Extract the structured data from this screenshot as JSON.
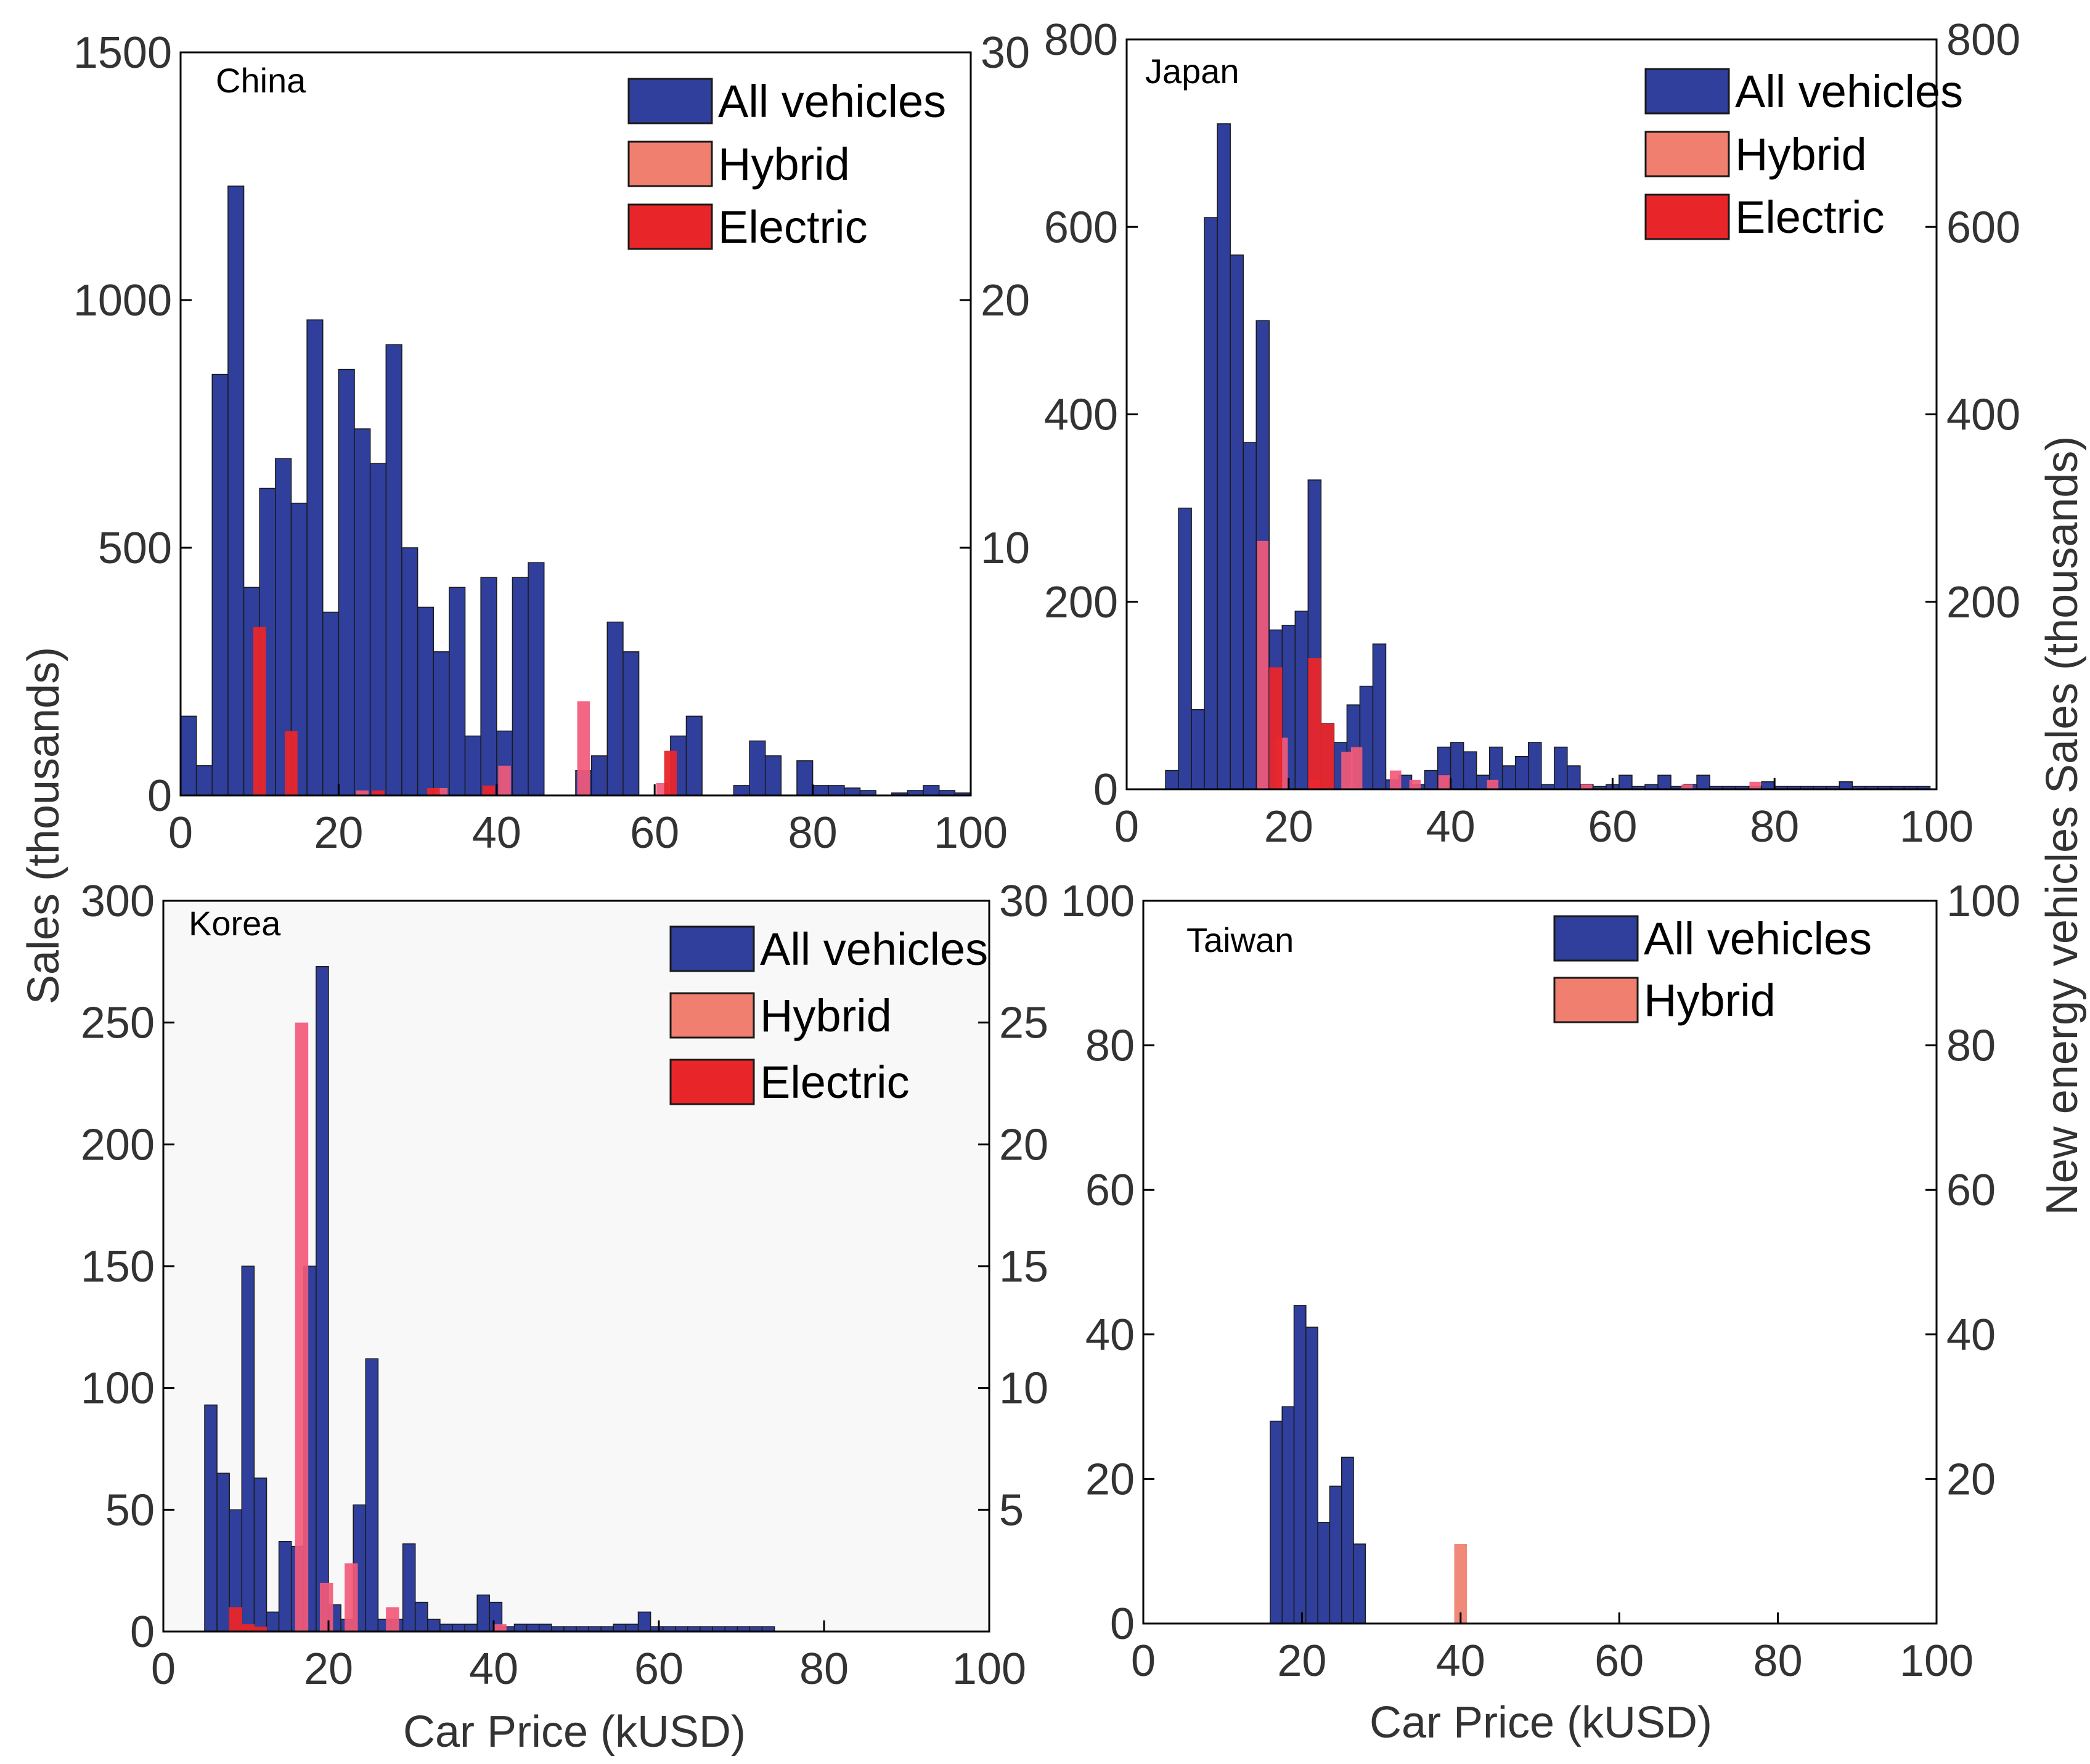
{
  "figure": {
    "left_axis_label": "Sales (thousands)",
    "right_axis_label": "New energy vehicles Sales (thousands)",
    "bottom_axis_label": "Car Price (kUSD)"
  },
  "colors": {
    "all_vehicles": "#2f3f9b",
    "hybrid": "#f07f6f",
    "electric": "#e8262a",
    "hybrid_overlay": "#f25a7a",
    "axes": "#000000",
    "text": "#333333",
    "korea_background": "#f8f8f8"
  },
  "legend_labels": {
    "all": "All vehicles",
    "hybrid": "Hybrid",
    "electric": "Electric"
  },
  "chart_data": [
    {
      "type": "bar",
      "title": "China",
      "xlabel": "",
      "ylabel": "Sales (thousands)",
      "y2label": "",
      "xlim": [
        0,
        100
      ],
      "ylim": [
        0,
        1500
      ],
      "y2lim": [
        0,
        30
      ],
      "xticks": [
        "0",
        "20",
        "40",
        "60",
        "80",
        "100"
      ],
      "yticks": [
        "0",
        "500",
        "1000",
        "1500"
      ],
      "y2ticks": [
        "10",
        "20",
        "30"
      ],
      "legend": [
        "All vehicles",
        "Hybrid",
        "Electric"
      ],
      "legend_position": "top-right",
      "bin_width": 2,
      "all_bins": [
        1,
        3,
        5,
        7,
        9,
        11,
        13,
        15,
        17,
        19,
        21,
        23,
        25,
        27,
        29,
        31,
        33,
        35,
        37,
        39,
        41,
        43,
        45,
        47,
        49,
        51,
        53,
        55,
        57,
        59,
        61,
        63,
        65,
        67,
        69,
        71,
        73,
        75,
        77,
        79,
        81,
        83,
        85,
        87,
        89,
        91,
        93,
        95,
        97,
        99
      ],
      "all_values": [
        160,
        60,
        850,
        1230,
        420,
        620,
        680,
        590,
        960,
        370,
        860,
        740,
        670,
        910,
        500,
        380,
        290,
        420,
        120,
        440,
        130,
        440,
        470,
        0,
        0,
        50,
        80,
        350,
        290,
        0,
        0,
        120,
        160,
        0,
        0,
        20,
        110,
        80,
        0,
        70,
        20,
        20,
        15,
        10,
        0,
        5,
        10,
        20,
        10,
        5
      ],
      "hybrid_bins": [
        23,
        33,
        41,
        51,
        61
      ],
      "hybrid_values": [
        0.2,
        0.3,
        1.2,
        3.8,
        0.5
      ],
      "electric_bins": [
        10,
        14,
        25,
        32,
        39,
        62
      ],
      "electric_values": [
        6.8,
        2.6,
        0.2,
        0.3,
        0.4,
        1.8
      ]
    },
    {
      "type": "bar",
      "title": "Japan",
      "xlabel": "",
      "ylabel": "",
      "y2label": "New energy vehicles Sales (thousands)",
      "xlim": [
        0,
        100
      ],
      "ylim": [
        0,
        800
      ],
      "y2lim": [
        0,
        800
      ],
      "xticks": [
        "0",
        "20",
        "40",
        "60",
        "80",
        "100"
      ],
      "yticks": [
        "0",
        "200",
        "400",
        "600",
        "800"
      ],
      "y2ticks": [
        "200",
        "400",
        "600",
        "800"
      ],
      "legend": [
        "All vehicles",
        "Hybrid",
        "Electric"
      ],
      "legend_position": "top-right",
      "bin_width": 1.6,
      "all_bins": [
        5.6,
        7.2,
        8.8,
        10.4,
        12.0,
        13.6,
        15.2,
        16.8,
        18.4,
        20.0,
        21.6,
        23.2,
        24.8,
        26.4,
        28.0,
        29.6,
        31.2,
        32.8,
        34.4,
        36.0,
        37.6,
        39.2,
        40.8,
        42.4,
        44.0,
        45.6,
        47.2,
        48.8,
        50.4,
        52.0,
        53.6,
        55.2,
        56.8,
        58.4,
        60.0,
        61.6,
        63.2,
        64.8,
        66.4,
        68.0,
        69.6,
        71.2,
        72.8,
        74.4,
        76.0,
        77.6,
        79.2,
        80.8,
        82.4,
        84.0,
        85.6,
        87.2,
        88.8,
        90.4,
        92.0,
        93.6,
        95.2,
        96.8,
        98.4
      ],
      "all_values": [
        20,
        300,
        85,
        610,
        710,
        570,
        370,
        500,
        170,
        175,
        190,
        330,
        70,
        50,
        90,
        110,
        155,
        10,
        15,
        5,
        20,
        45,
        50,
        40,
        15,
        45,
        25,
        35,
        50,
        5,
        45,
        25,
        5,
        3,
        5,
        15,
        3,
        5,
        15,
        3,
        5,
        15,
        3,
        3,
        3,
        3,
        8,
        3,
        3,
        3,
        3,
        3,
        8,
        3,
        3,
        3,
        3,
        3,
        3
      ],
      "hybrid_bins": [
        16.8,
        19.2,
        23.2,
        27.2,
        28.4,
        33.2,
        35.6,
        39.2,
        45.2,
        56.8,
        69.2,
        77.6
      ],
      "hybrid_values": [
        265,
        55,
        10,
        40,
        45,
        20,
        10,
        15,
        10,
        5,
        5,
        8
      ],
      "electric_bins": [
        18.4,
        23.2,
        24.8
      ],
      "electric_values": [
        130,
        140,
        70
      ]
    },
    {
      "type": "bar",
      "title": "Korea",
      "xlabel": "Car Price (kUSD)",
      "ylabel": "",
      "y2label": "",
      "xlim": [
        0,
        100
      ],
      "ylim": [
        0,
        300
      ],
      "y2lim": [
        0,
        30
      ],
      "xticks": [
        "0",
        "20",
        "40",
        "60",
        "80",
        "100"
      ],
      "yticks": [
        "0",
        "50",
        "100",
        "150",
        "200",
        "250",
        "300"
      ],
      "y2ticks": [
        "5",
        "10",
        "15",
        "20",
        "25",
        "30"
      ],
      "legend": [
        "All vehicles",
        "Hybrid",
        "Electric"
      ],
      "legend_position": "top-right",
      "bin_width": 1.5,
      "all_bins": [
        5.75,
        7.25,
        8.75,
        10.25,
        11.75,
        13.25,
        14.75,
        16.25,
        17.75,
        19.25,
        20.75,
        22.25,
        23.75,
        25.25,
        26.75,
        28.25,
        29.75,
        31.25,
        32.75,
        34.25,
        35.75,
        37.25,
        38.75,
        40.25,
        41.75,
        43.25,
        44.75,
        46.25,
        47.75,
        49.25,
        50.75,
        52.25,
        53.75,
        55.25,
        56.75,
        58.25,
        59.75,
        61.25,
        62.75,
        64.25,
        65.75,
        67.25,
        68.75,
        70.25,
        71.75,
        73.25
      ],
      "all_values": [
        93,
        65,
        50,
        150,
        63,
        8,
        37,
        35,
        150,
        273,
        11,
        5,
        52,
        112,
        5,
        5,
        36,
        12,
        5,
        3,
        3,
        3,
        15,
        12,
        2,
        3,
        3,
        3,
        2,
        2,
        2,
        2,
        2,
        3,
        3,
        8,
        2,
        2,
        2,
        2,
        2,
        2,
        2,
        2,
        2,
        2
      ],
      "hybrid_bins": [
        16.75,
        19.75,
        22.75,
        27.75,
        40.75
      ],
      "hybrid_values": [
        25,
        2,
        2.8,
        1,
        0.3
      ],
      "electric_bins": [
        8.75,
        10.25,
        11.75
      ],
      "electric_values": [
        1,
        0.3,
        0.2
      ]
    },
    {
      "type": "bar",
      "title": "Taiwan",
      "xlabel": "Car Price (kUSD)",
      "ylabel": "",
      "y2label": "",
      "xlim": [
        0,
        100
      ],
      "ylim": [
        0,
        100
      ],
      "y2lim": [
        0,
        100
      ],
      "xticks": [
        "0",
        "20",
        "40",
        "60",
        "80",
        "100"
      ],
      "yticks": [
        "0",
        "20",
        "40",
        "60",
        "80",
        "100"
      ],
      "y2ticks": [
        "20",
        "40",
        "60",
        "80",
        "100"
      ],
      "legend": [
        "All vehicles",
        "Hybrid"
      ],
      "legend_position": "top-right",
      "bin_width": 1.5,
      "all_bins": [
        16.75,
        18.25,
        19.75,
        21.25,
        22.75,
        24.25,
        25.75,
        27.25
      ],
      "all_values": [
        28,
        30,
        44,
        41,
        14,
        19,
        23,
        11
      ],
      "hybrid_bins": [
        40
      ],
      "hybrid_values": [
        11
      ]
    }
  ]
}
